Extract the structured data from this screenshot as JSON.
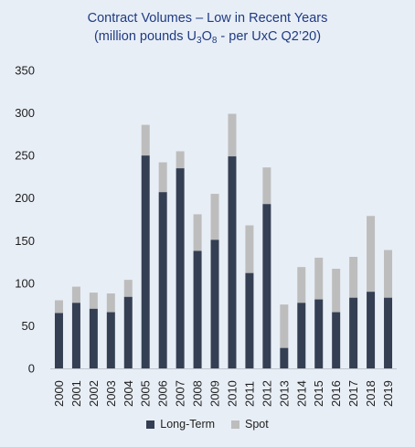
{
  "title_line1": "Contract Volumes – Low in Recent Years",
  "title_line2_pre": "(million pounds U",
  "title_line2_sub1": "3",
  "title_line2_mid": "O",
  "title_line2_sub2": "8",
  "title_line2_post": " - per UxC Q2’20)",
  "colors": {
    "long_term": "#353f53",
    "spot": "#bdbdbd",
    "background": "#e8eef6",
    "title": "#1f3b82"
  },
  "chart_data": {
    "type": "bar",
    "stacked": true,
    "title": "Contract Volumes – Low in Recent Years (million pounds U3O8 - per UxC Q2’20)",
    "categories": [
      "2000",
      "2001",
      "2002",
      "2003",
      "2004",
      "2005",
      "2006",
      "2007",
      "2008",
      "2009",
      "2010",
      "2011",
      "2012",
      "2013",
      "2014",
      "2015",
      "2016",
      "2017",
      "2018",
      "2019"
    ],
    "series": [
      {
        "name": "Long-Term",
        "values": [
          65,
          77,
          70,
          66,
          84,
          250,
          207,
          235,
          138,
          151,
          249,
          112,
          193,
          24,
          77,
          81,
          66,
          83,
          90,
          83
        ]
      },
      {
        "name": "Spot",
        "values": [
          15,
          19,
          19,
          22,
          20,
          36,
          35,
          20,
          43,
          54,
          50,
          56,
          43,
          51,
          42,
          49,
          51,
          48,
          89,
          56
        ]
      }
    ],
    "ylim": [
      0,
      350
    ],
    "yticks": [
      0,
      50,
      100,
      150,
      200,
      250,
      300,
      350
    ],
    "grid": false,
    "legend": "bottom"
  }
}
